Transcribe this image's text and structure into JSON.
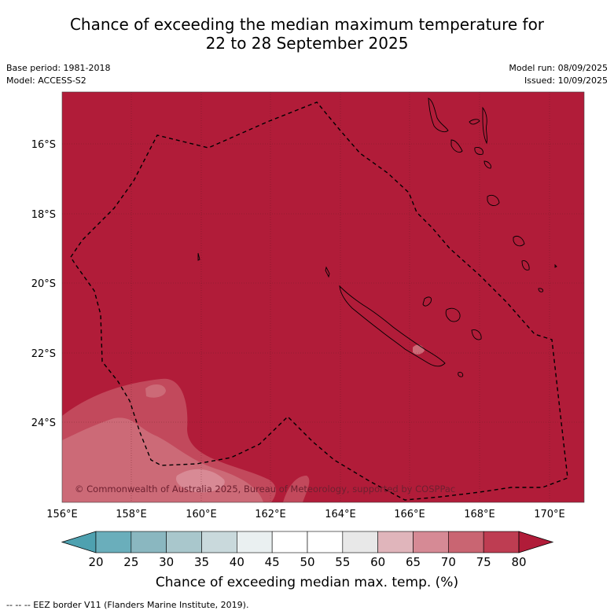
{
  "header": {
    "title_line1": "Chance of exceeding the median maximum temperature for",
    "title_line2": "22 to 28 September 2025",
    "base_period": "Base period: 1981-2018",
    "model": "Model: ACCESS-S2",
    "model_run": "Model run: 08/09/2025",
    "issued": "Issued: 10/09/2025"
  },
  "map": {
    "lon_ticks": [
      "156°E",
      "158°E",
      "160°E",
      "162°E",
      "164°E",
      "166°E",
      "168°E",
      "170°E"
    ],
    "lat_ticks": [
      "16°S",
      "18°S",
      "20°S",
      "22°S",
      "24°S"
    ],
    "copyright": "© Commonwealth of Australia 2025, Bureau of Meteorology, supported by COSPPac",
    "background_color": "#b11c39",
    "eez_line_style": "dashed"
  },
  "colorbar": {
    "ticks": [
      "20",
      "25",
      "30",
      "35",
      "40",
      "45",
      "50",
      "55",
      "60",
      "65",
      "70",
      "75",
      "80"
    ],
    "colors": [
      "#4ea1b0",
      "#6aaebb",
      "#8ab7c0",
      "#a9c7cc",
      "#c9d9dc",
      "#eaf0f1",
      "#ffffff",
      "#ffffff",
      "#e8e8e8",
      "#e0b5bb",
      "#d68a95",
      "#c96572",
      "#be3d52",
      "#b11c39"
    ],
    "label": "Chance of exceeding median max. temp. (%)"
  },
  "footer": {
    "eez_note": "-- -- -- EEZ border V11 (Flanders Marine Institute, 2019)."
  }
}
